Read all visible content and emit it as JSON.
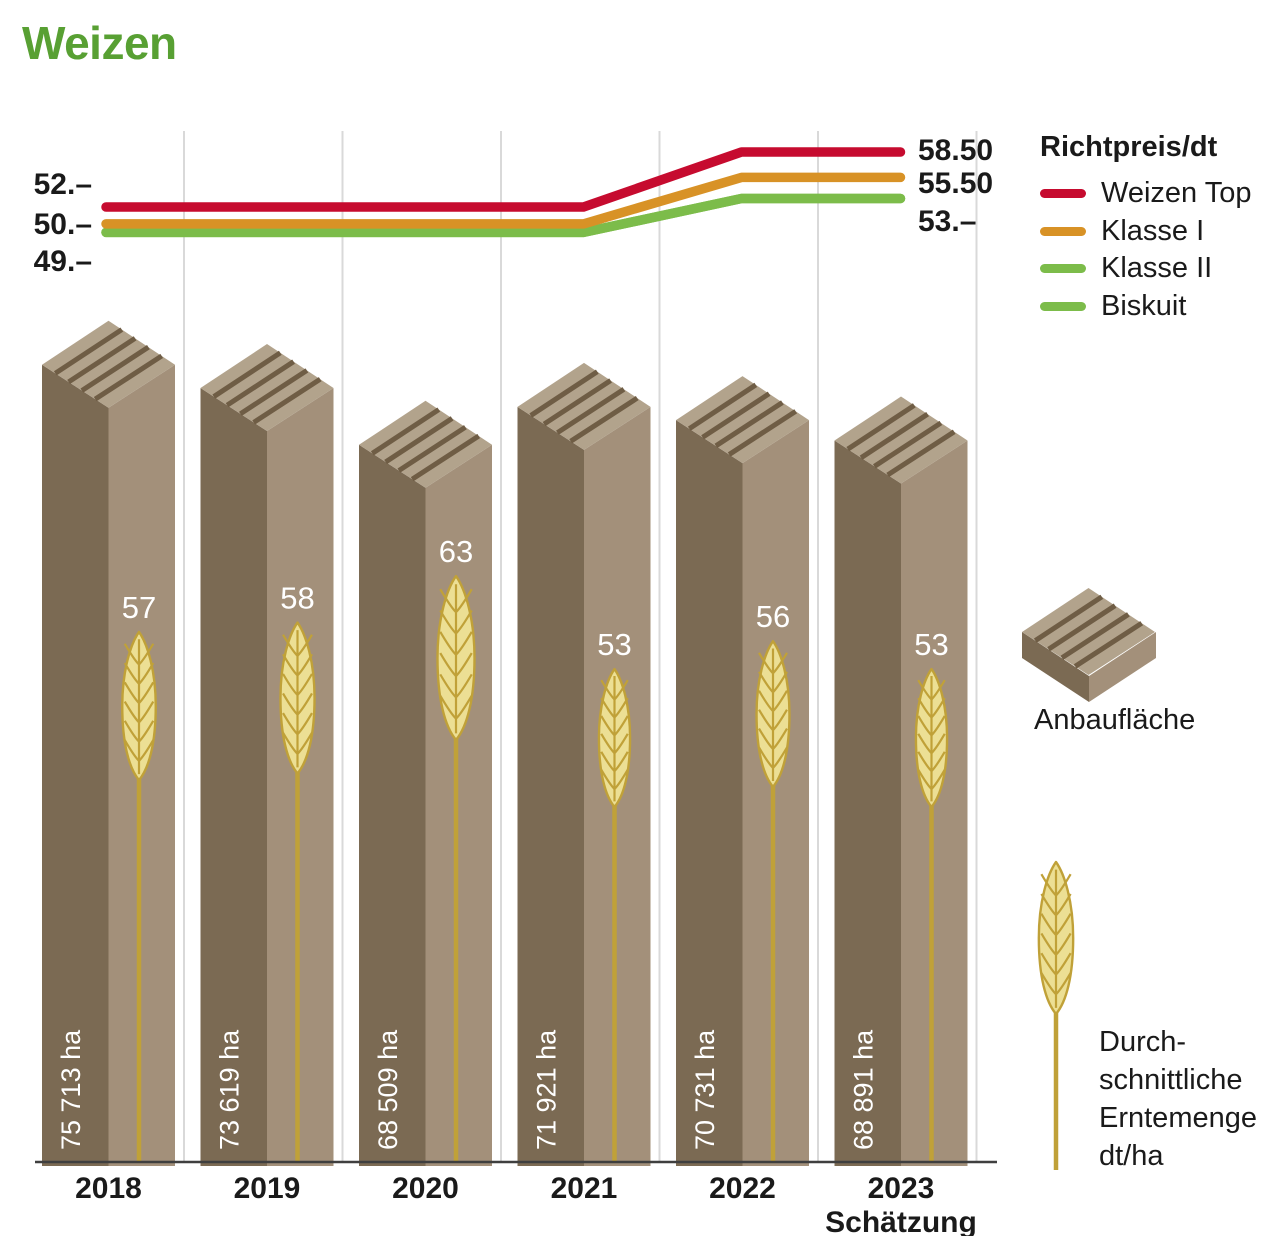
{
  "title": "Weizen",
  "chart_data": {
    "type": "mixed",
    "x_years": [
      "2018",
      "2019",
      "2020",
      "2021",
      "2022",
      "2023"
    ],
    "x_note": "Schätzung",
    "price_lines": {
      "title": "Richtpreis/dt",
      "series": [
        {
          "name": "Weizen Top",
          "color": "#c60b2f",
          "values": [
            52,
            52,
            52,
            52,
            58.5,
            58.5
          ],
          "start_label": "52.–",
          "end_label": "58.50"
        },
        {
          "name": "Klasse I",
          "color": "#d89226",
          "values": [
            50,
            50,
            50,
            50,
            55.5,
            55.5
          ],
          "start_label": "50.–",
          "end_label": "55.50"
        },
        {
          "name": "Klasse II",
          "color": "#7cbc4a",
          "values": [
            49,
            49,
            49,
            49,
            53,
            53
          ],
          "start_label": "49.–",
          "end_label": "53.–"
        },
        {
          "name": "Biskuit",
          "color": "#7cbc4a",
          "values": [
            49,
            49,
            49,
            49,
            53,
            53
          ],
          "start_label": "",
          "end_label": ""
        }
      ]
    },
    "price_left_labels": [
      "52.–",
      "50.–",
      "49.–"
    ],
    "price_right_labels": [
      "58.50",
      "55.50",
      "53.–"
    ],
    "area_bars": {
      "name": "Anbaufläche",
      "unit": "ha",
      "values": [
        75713,
        73619,
        68509,
        71921,
        70731,
        68891
      ],
      "labels": [
        "75 713 ha",
        "73 619 ha",
        "68 509 ha",
        "71 921 ha",
        "70 731 ha",
        "68 891 ha"
      ]
    },
    "yield_ears": {
      "name": "Durchschnittliche Erntemenge",
      "unit": "dt/ha",
      "values": [
        57,
        58,
        63,
        53,
        56,
        53
      ]
    }
  },
  "legend": {
    "price_title": "Richtpreis/dt",
    "items": [
      {
        "label": "Weizen Top",
        "color": "#c60b2f"
      },
      {
        "label": "Klasse I",
        "color": "#d89226"
      },
      {
        "label": "Klasse II",
        "color": "#7cbc4a"
      },
      {
        "label": "Biskuit",
        "color": "#7cbc4a"
      }
    ],
    "area_label": "Anbaufläche",
    "yield_label_lines": [
      "Durch-",
      "schnittliche",
      "Erntemenge",
      "dt/ha"
    ]
  },
  "colors": {
    "title_green": "#58a033",
    "bar_left": "#7b6a53",
    "bar_right": "#a3907a",
    "bar_top": "#b2a38c",
    "bar_groove": "#6f5d45",
    "wheat_fill": "#ecdf94",
    "wheat_stroke": "#c0a138",
    "grid": "#d9d9d9",
    "axis": "#3f3f3f",
    "text": "#1a1a1a",
    "value_text": "#ffffff"
  }
}
